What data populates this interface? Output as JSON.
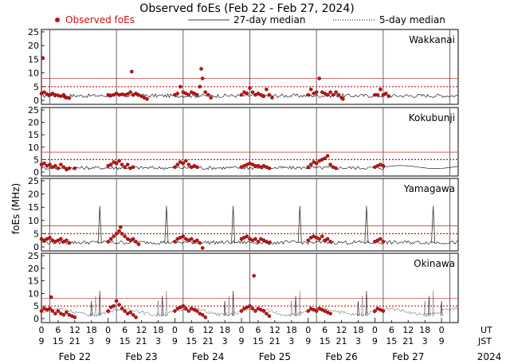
{
  "chart_data": {
    "type": "scatter",
    "title": "Observed foEs (Feb 22 - Feb 27, 2024)",
    "legend": {
      "observed": "Observed foEs",
      "median27": "27-day median",
      "median5": "5-day median",
      "placement": "top"
    },
    "ylabel": "foEs (MHz)",
    "ylim": [
      0,
      25
    ],
    "yticks": [
      "0",
      "5",
      "10",
      "15",
      "20",
      "25"
    ],
    "xlim_hours": [
      0,
      150
    ],
    "ut_label": "UT",
    "jst_label": "JST",
    "ut_ticks": [
      "0",
      "6",
      "12",
      "18",
      "0",
      "6",
      "12",
      "18",
      "0",
      "6",
      "12",
      "18",
      "0",
      "6",
      "12",
      "18",
      "0",
      "6",
      "12",
      "18",
      "0",
      "6",
      "12",
      "18",
      "0"
    ],
    "jst_ticks": [
      "9",
      "15",
      "21",
      "3",
      "9",
      "15",
      "21",
      "3",
      "9",
      "15",
      "21",
      "3",
      "9",
      "15",
      "21",
      "3",
      "9",
      "15",
      "21",
      "3",
      "9",
      "15",
      "21",
      "3",
      "9"
    ],
    "day_labels": [
      "Feb 22",
      "Feb 23",
      "Feb 24",
      "Feb 25",
      "Feb 26",
      "Feb 27"
    ],
    "year_label": "2024",
    "day_boundaries_hours": [
      3,
      27,
      51,
      75,
      99,
      123,
      147
    ],
    "colors": {
      "observed": "#cc1111",
      "observed_dark": "#330000",
      "median27": "#c84040",
      "median5": "#cc1111",
      "day_line": "#555555",
      "trace": "#000000"
    },
    "panels": [
      {
        "station": "Wakkanai",
        "median27": 8,
        "median5": 5,
        "obs": [
          [
            0,
            2.5
          ],
          [
            0.5,
            15.5
          ],
          [
            1,
            3
          ],
          [
            2,
            2.2
          ],
          [
            3,
            2
          ],
          [
            4,
            2.5
          ],
          [
            5,
            2
          ],
          [
            6,
            1.8
          ],
          [
            7,
            1.5
          ],
          [
            8,
            2
          ],
          [
            8.5,
            1.2
          ],
          [
            9,
            1
          ],
          [
            10,
            0.8
          ],
          [
            24,
            2
          ],
          [
            25,
            1.8
          ],
          [
            26,
            2
          ],
          [
            27,
            2.5
          ],
          [
            28,
            2
          ],
          [
            29,
            2.2
          ],
          [
            30,
            2
          ],
          [
            31,
            2.3
          ],
          [
            32,
            3
          ],
          [
            32.5,
            10.5
          ],
          [
            33,
            2
          ],
          [
            34,
            2.5
          ],
          [
            35,
            2
          ],
          [
            36,
            1.5
          ],
          [
            37,
            1
          ],
          [
            38,
            0.5
          ],
          [
            48,
            2
          ],
          [
            49,
            2.5
          ],
          [
            50,
            5
          ],
          [
            51,
            3
          ],
          [
            52,
            2.5
          ],
          [
            53,
            2
          ],
          [
            54,
            3
          ],
          [
            55,
            2.5
          ],
          [
            56,
            2
          ],
          [
            57,
            5
          ],
          [
            57.5,
            11.5
          ],
          [
            58,
            8
          ],
          [
            59,
            3
          ],
          [
            60,
            2
          ],
          [
            61,
            1
          ],
          [
            72,
            2
          ],
          [
            73,
            3
          ],
          [
            74,
            2.5
          ],
          [
            75,
            4.5
          ],
          [
            76,
            3
          ],
          [
            77,
            2
          ],
          [
            78,
            2.5
          ],
          [
            79,
            2
          ],
          [
            80,
            1.5
          ],
          [
            81,
            4
          ],
          [
            82,
            2
          ],
          [
            83,
            1
          ],
          [
            96,
            2
          ],
          [
            97,
            4
          ],
          [
            98,
            2.5
          ],
          [
            99,
            3
          ],
          [
            100,
            8
          ],
          [
            101,
            3
          ],
          [
            102,
            2.5
          ],
          [
            103,
            2
          ],
          [
            104,
            3
          ],
          [
            105,
            2
          ],
          [
            106,
            3
          ],
          [
            107,
            2
          ],
          [
            108,
            1
          ],
          [
            108.5,
            0.5
          ],
          [
            120,
            2
          ],
          [
            121,
            2
          ],
          [
            122,
            4
          ],
          [
            123,
            2
          ],
          [
            124,
            2.5
          ],
          [
            125,
            1.5
          ]
        ]
      },
      {
        "station": "Kokubunji",
        "median27": 8,
        "median5": 5,
        "obs": [
          [
            0,
            3
          ],
          [
            1,
            3.5
          ],
          [
            2,
            2.5
          ],
          [
            3,
            3
          ],
          [
            4,
            2
          ],
          [
            5,
            2.5
          ],
          [
            6,
            1.5
          ],
          [
            7,
            3
          ],
          [
            8,
            2
          ],
          [
            9,
            1
          ],
          [
            10,
            1.5
          ],
          [
            12,
            1.5
          ],
          [
            24,
            2.5
          ],
          [
            25,
            3
          ],
          [
            26,
            4
          ],
          [
            27,
            3.5
          ],
          [
            28,
            4.5
          ],
          [
            29,
            3
          ],
          [
            30,
            2
          ],
          [
            31,
            3
          ],
          [
            32,
            1.5
          ],
          [
            33,
            2
          ],
          [
            48,
            2
          ],
          [
            49,
            3
          ],
          [
            50,
            4
          ],
          [
            51,
            3.5
          ],
          [
            52,
            4.5
          ],
          [
            53,
            3
          ],
          [
            54,
            2
          ],
          [
            55,
            2.5
          ],
          [
            56,
            2
          ],
          [
            72,
            2
          ],
          [
            73,
            2.5
          ],
          [
            74,
            3
          ],
          [
            75,
            3.5
          ],
          [
            76,
            3
          ],
          [
            77,
            2.5
          ],
          [
            78,
            2.5
          ],
          [
            79,
            2
          ],
          [
            80,
            2.5
          ],
          [
            81,
            2
          ],
          [
            82,
            1.5
          ],
          [
            96,
            2
          ],
          [
            97,
            3
          ],
          [
            98,
            4
          ],
          [
            99,
            3.5
          ],
          [
            100,
            4.5
          ],
          [
            101,
            5
          ],
          [
            102,
            5.5
          ],
          [
            103,
            6.5
          ],
          [
            104,
            3
          ],
          [
            105,
            2
          ],
          [
            106,
            1.5
          ],
          [
            120,
            2
          ],
          [
            121,
            2.5
          ],
          [
            122,
            3
          ],
          [
            123,
            2.5
          ]
        ]
      },
      {
        "station": "Yamagawa",
        "median27": 8,
        "median5": 5,
        "obs": [
          [
            0,
            3
          ],
          [
            1,
            2.5
          ],
          [
            2,
            3
          ],
          [
            3,
            3.5
          ],
          [
            4,
            2.5
          ],
          [
            5,
            2
          ],
          [
            6,
            2.5
          ],
          [
            7,
            3
          ],
          [
            8,
            2
          ],
          [
            9,
            2.5
          ],
          [
            10,
            1.5
          ],
          [
            24,
            2
          ],
          [
            25,
            3
          ],
          [
            26,
            4
          ],
          [
            27,
            5
          ],
          [
            28,
            6
          ],
          [
            28.5,
            7.5
          ],
          [
            29,
            5
          ],
          [
            30,
            4
          ],
          [
            31,
            3
          ],
          [
            32,
            2.5
          ],
          [
            33,
            3
          ],
          [
            34,
            2
          ],
          [
            35,
            1
          ],
          [
            48,
            2
          ],
          [
            49,
            3
          ],
          [
            50,
            3.5
          ],
          [
            51,
            4
          ],
          [
            52,
            3
          ],
          [
            53,
            2.5
          ],
          [
            54,
            3
          ],
          [
            55,
            2
          ],
          [
            56,
            2.5
          ],
          [
            57,
            1.5
          ],
          [
            58,
            -0.5
          ],
          [
            72,
            3
          ],
          [
            73,
            3.5
          ],
          [
            74,
            4
          ],
          [
            75,
            3
          ],
          [
            76,
            2.5
          ],
          [
            77,
            3
          ],
          [
            78,
            2
          ],
          [
            79,
            3
          ],
          [
            80,
            2.5
          ],
          [
            81,
            2
          ],
          [
            82,
            1.5
          ],
          [
            96,
            2.5
          ],
          [
            97,
            3.5
          ],
          [
            98,
            4
          ],
          [
            99,
            3.5
          ],
          [
            100,
            3
          ],
          [
            101,
            4
          ],
          [
            102,
            2.5
          ],
          [
            103,
            3
          ],
          [
            104,
            2
          ],
          [
            120,
            2
          ],
          [
            121,
            2.5
          ],
          [
            122,
            3
          ],
          [
            123,
            2
          ]
        ]
      },
      {
        "station": "Okinawa",
        "median27": 8,
        "median5": 5,
        "obs": [
          [
            0,
            3
          ],
          [
            1,
            4
          ],
          [
            2,
            3.5
          ],
          [
            3,
            4
          ],
          [
            3.5,
            8.5
          ],
          [
            4,
            3
          ],
          [
            5,
            2
          ],
          [
            6,
            3
          ],
          [
            7,
            2
          ],
          [
            8,
            1.5
          ],
          [
            9,
            2.5
          ],
          [
            10,
            1.5
          ],
          [
            11,
            1
          ],
          [
            12,
            0.5
          ],
          [
            24,
            3
          ],
          [
            25,
            4.5
          ],
          [
            26,
            5
          ],
          [
            27,
            7
          ],
          [
            28,
            5.5
          ],
          [
            29,
            4
          ],
          [
            30,
            3
          ],
          [
            31,
            2
          ],
          [
            32,
            2.5
          ],
          [
            33,
            1.5
          ],
          [
            34,
            0.5
          ],
          [
            48,
            3
          ],
          [
            49,
            4
          ],
          [
            50,
            4.5
          ],
          [
            51,
            5
          ],
          [
            52,
            4
          ],
          [
            53,
            3
          ],
          [
            54,
            4
          ],
          [
            55,
            3.5
          ],
          [
            56,
            3
          ],
          [
            57,
            2
          ],
          [
            58,
            1.5
          ],
          [
            59,
            0.5
          ],
          [
            72,
            3
          ],
          [
            73,
            4
          ],
          [
            74,
            4.5
          ],
          [
            75,
            5
          ],
          [
            76,
            4
          ],
          [
            76.5,
            17
          ],
          [
            77,
            3
          ],
          [
            78,
            4
          ],
          [
            79,
            3.5
          ],
          [
            80,
            3
          ],
          [
            81,
            2
          ],
          [
            82,
            1
          ],
          [
            96,
            3
          ],
          [
            97,
            4
          ],
          [
            98,
            3.5
          ],
          [
            99,
            3
          ],
          [
            100,
            4
          ],
          [
            101,
            3.5
          ],
          [
            102,
            3
          ],
          [
            103,
            2.5
          ],
          [
            104,
            2
          ],
          [
            120,
            3
          ],
          [
            121,
            4
          ],
          [
            122,
            3.5
          ],
          [
            123,
            3
          ]
        ]
      }
    ]
  }
}
